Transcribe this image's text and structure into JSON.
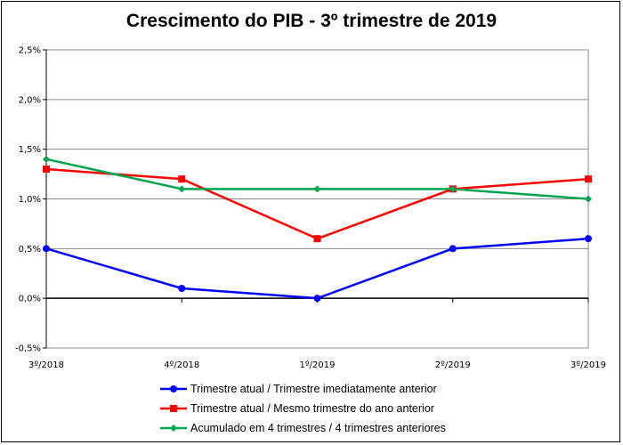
{
  "chart_data": {
    "type": "line",
    "title": "Crescimento do PIB - 3º trimestre de 2019",
    "categories": [
      "3º/2018",
      "4º/2018",
      "1º/2019",
      "2º/2019",
      "3º/2019"
    ],
    "y_ticks": [
      "2,5%",
      "2,0%",
      "1,5%",
      "1,0%",
      "0,5%",
      "0,0%",
      "-0,5%"
    ],
    "ylim": [
      -0.5,
      2.5
    ],
    "grid": "horizontal",
    "legend_position": "bottom",
    "series": [
      {
        "name": "Trimestre atual / Trimestre imediatamente anterior",
        "values": [
          0.5,
          0.1,
          0.0,
          0.5,
          0.6
        ],
        "color": "#0000ff",
        "marker": "circle"
      },
      {
        "name": "Trimestre atual / Mesmo trimestre do ano anterior",
        "values": [
          1.3,
          1.2,
          0.6,
          1.1,
          1.2
        ],
        "color": "#ff0000",
        "marker": "square"
      },
      {
        "name": "Acumulado em 4 trimestres / 4 trimestres anteriores",
        "values": [
          1.4,
          1.1,
          1.1,
          1.1,
          1.0
        ],
        "color": "#00a550",
        "marker": "diamond"
      }
    ]
  }
}
